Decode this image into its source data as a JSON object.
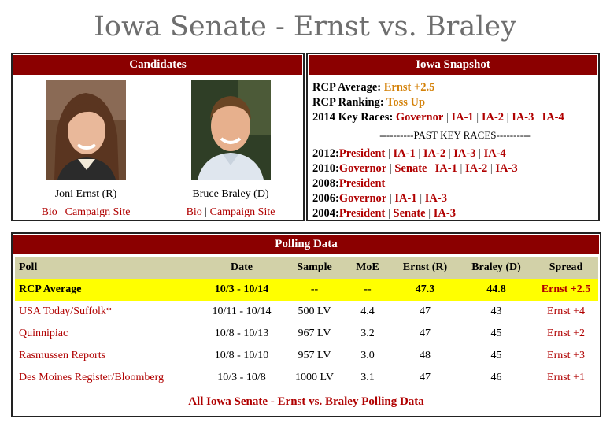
{
  "page": {
    "title": "Iowa Senate - Ernst vs. Braley"
  },
  "candidates": {
    "header": "Candidates",
    "items": [
      {
        "name": "Joni Ernst (R)",
        "bio": "Bio",
        "sep": " | ",
        "site": "Campaign Site"
      },
      {
        "name": "Bruce Braley (D)",
        "bio": "Bio",
        "sep": " | ",
        "site": "Campaign Site"
      }
    ]
  },
  "snapshot": {
    "header": "Iowa Snapshot",
    "rcp_average_label": "RCP Average:",
    "rcp_average_value": "Ernst +2.5",
    "rcp_ranking_label": "RCP Ranking:",
    "rcp_ranking_value": "Toss Up",
    "key_races_label": "2014 Key Races:",
    "key_races": [
      "Governor",
      "IA-1",
      "IA-2",
      "IA-3",
      "IA-4"
    ],
    "past_label": "----------PAST KEY RACES----------",
    "past": [
      {
        "year": "2012:",
        "races": [
          "President",
          "IA-1",
          "IA-2",
          "IA-3",
          "IA-4"
        ]
      },
      {
        "year": "2010:",
        "races": [
          "Governor",
          "Senate",
          "IA-1",
          "IA-2",
          "IA-3"
        ]
      },
      {
        "year": "2008:",
        "races": [
          "President"
        ]
      },
      {
        "year": "2006:",
        "races": [
          "Governor",
          "IA-1",
          "IA-3"
        ]
      },
      {
        "year": "2004:",
        "races": [
          "President",
          "Senate",
          "IA-3"
        ]
      }
    ]
  },
  "polling": {
    "header": "Polling Data",
    "columns": [
      "Poll",
      "Date",
      "Sample",
      "MoE",
      "Ernst (R)",
      "Braley (D)",
      "Spread"
    ],
    "rows": [
      {
        "poll": "RCP Average",
        "date": "10/3 - 10/14",
        "sample": "--",
        "moe": "--",
        "ernst": "47.3",
        "braley": "44.8",
        "spread": "Ernst +2.5"
      },
      {
        "poll": "USA Today/Suffolk*",
        "date": "10/11 - 10/14",
        "sample": "500 LV",
        "moe": "4.4",
        "ernst": "47",
        "braley": "43",
        "spread": "Ernst +4"
      },
      {
        "poll": "Quinnipiac",
        "date": "10/8 - 10/13",
        "sample": "967 LV",
        "moe": "3.2",
        "ernst": "47",
        "braley": "45",
        "spread": "Ernst +2"
      },
      {
        "poll": "Rasmussen Reports",
        "date": "10/8 - 10/10",
        "sample": "957 LV",
        "moe": "3.0",
        "ernst": "48",
        "braley": "45",
        "spread": "Ernst +3"
      },
      {
        "poll": "Des Moines Register/Bloomberg",
        "date": "10/3 - 10/8",
        "sample": "1000 LV",
        "moe": "3.1",
        "ernst": "47",
        "braley": "46",
        "spread": "Ernst +1"
      }
    ],
    "footer_link": "All Iowa Senate - Ernst vs. Braley Polling Data"
  },
  "colors": {
    "header_red": "#8b0000",
    "link_red": "#b00000",
    "highlight_yellow": "#ffff00",
    "table_head": "#d2d1a8",
    "accent_orange": "#d4820a"
  }
}
